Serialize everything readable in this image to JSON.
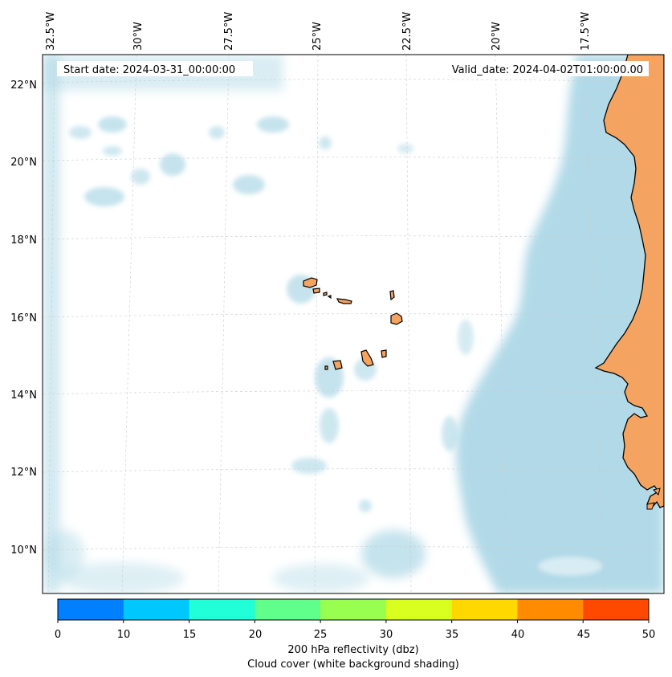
{
  "header": {
    "start_date": "Start date: 2024-03-31_00:00:00",
    "valid_date": "Valid_date: 2024-04-02T01:00:00.00"
  },
  "map": {
    "lon_labels": [
      "32.5°W",
      "30°W",
      "27.5°W",
      "25°W",
      "22.5°W",
      "20°W",
      "17.5°W"
    ],
    "lat_labels": [
      "22°N",
      "20°N",
      "18°N",
      "16°N",
      "14°N",
      "12°N",
      "10°N"
    ],
    "colors": {
      "ocean_cloud": "#add8e6",
      "land": "#f4a460",
      "coast": "#000000",
      "grid": "#cccccc"
    },
    "icons": [
      "coastline-africa",
      "cape-verde-islands"
    ]
  },
  "colorbar": {
    "ticks": [
      "0",
      "10",
      "15",
      "20",
      "25",
      "30",
      "35",
      "40",
      "45",
      "50"
    ],
    "colors": [
      "#0080ff",
      "#00c8ff",
      "#20ffd8",
      "#60ff8c",
      "#98ff50",
      "#d8ff20",
      "#ffd800",
      "#ff8c00",
      "#ff4800"
    ],
    "label_line1": "200 hPa reflectivity (dbz)",
    "label_line2": "Cloud cover (white background shading)"
  }
}
